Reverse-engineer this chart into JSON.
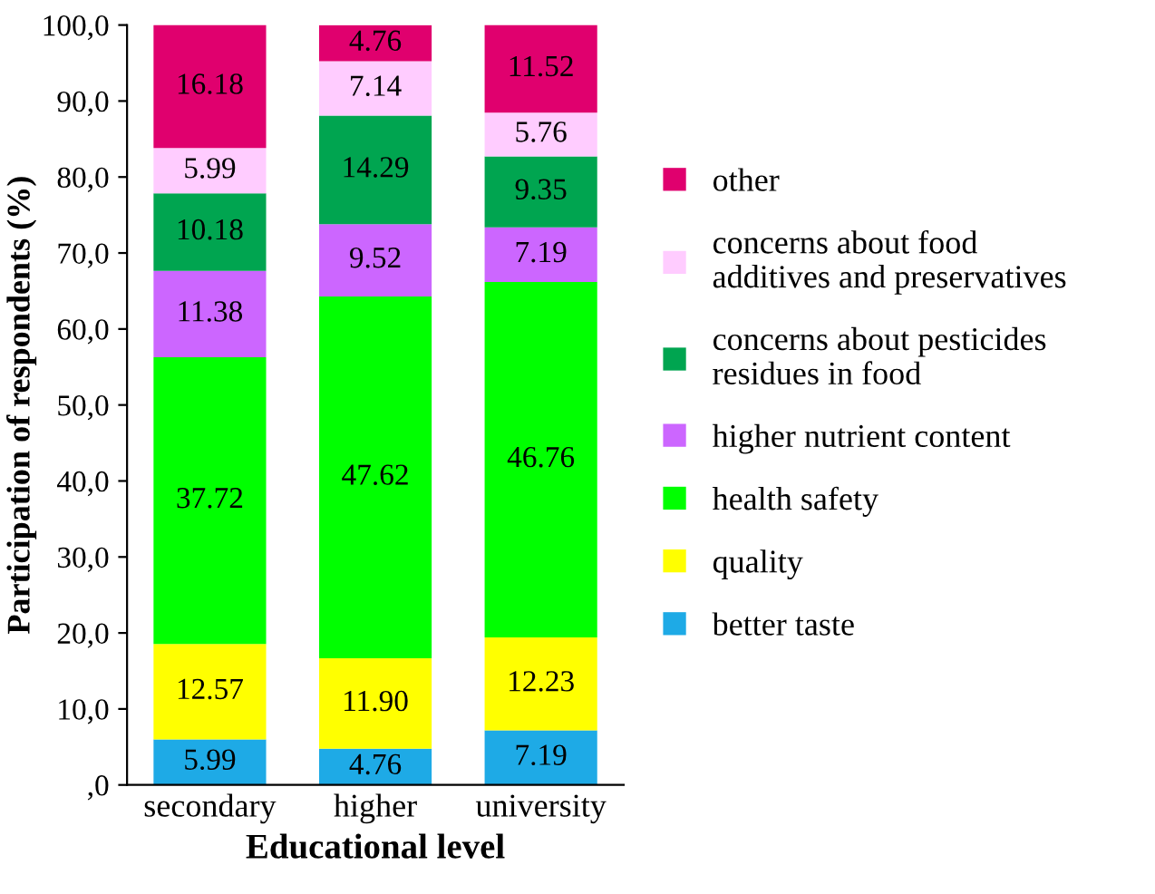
{
  "chart_data": {
    "type": "bar",
    "stacked": true,
    "xlabel": "Educational level",
    "ylabel": "Participation of respondents (%)",
    "categories": [
      "secondary",
      "higher",
      "university"
    ],
    "ylim": [
      0,
      100
    ],
    "yticks": [
      {
        "value": 0,
        "label": ",0"
      },
      {
        "value": 10,
        "label": "10,0"
      },
      {
        "value": 20,
        "label": "20,0"
      },
      {
        "value": 30,
        "label": "30,0"
      },
      {
        "value": 40,
        "label": "40,0"
      },
      {
        "value": 50,
        "label": "50,0"
      },
      {
        "value": 60,
        "label": "60,0"
      },
      {
        "value": 70,
        "label": "70,0"
      },
      {
        "value": 80,
        "label": "80,0"
      },
      {
        "value": 90,
        "label": "90,0"
      },
      {
        "value": 100,
        "label": "100,0"
      }
    ],
    "legend": "right",
    "grid": false,
    "series": [
      {
        "name": "better taste",
        "color": "#1eaae6",
        "values": [
          5.99,
          4.76,
          7.19
        ],
        "value_labels": [
          "5.99",
          "4.76",
          "7.19"
        ]
      },
      {
        "name": "quality",
        "color": "#ffff00",
        "values": [
          12.57,
          11.9,
          12.23
        ],
        "value_labels": [
          "12.57",
          "11.90",
          "12.23"
        ]
      },
      {
        "name": "health safety",
        "color": "#00ff00",
        "values": [
          37.72,
          47.62,
          46.76
        ],
        "value_labels": [
          "37.72",
          "47.62",
          "46.76"
        ]
      },
      {
        "name": "higher nutrient content",
        "color": "#cc66ff",
        "values": [
          11.38,
          9.52,
          7.19
        ],
        "value_labels": [
          "11.38",
          "9.52",
          "7.19"
        ]
      },
      {
        "name": "concerns about pesticides\nresidues in food",
        "color": "#00a550",
        "values": [
          10.18,
          14.29,
          9.35
        ],
        "value_labels": [
          "10.18",
          "14.29",
          "9.35"
        ]
      },
      {
        "name": "concerns about food\nadditives and preservatives",
        "color": "#ffccff",
        "values": [
          5.99,
          7.14,
          5.76
        ],
        "value_labels": [
          "5.99",
          "7.14",
          "5.76"
        ]
      },
      {
        "name": "other",
        "color": "#e0006e",
        "values": [
          16.18,
          4.76,
          11.52
        ],
        "value_labels": [
          "16.18",
          "4.76",
          "11.52"
        ]
      }
    ]
  }
}
